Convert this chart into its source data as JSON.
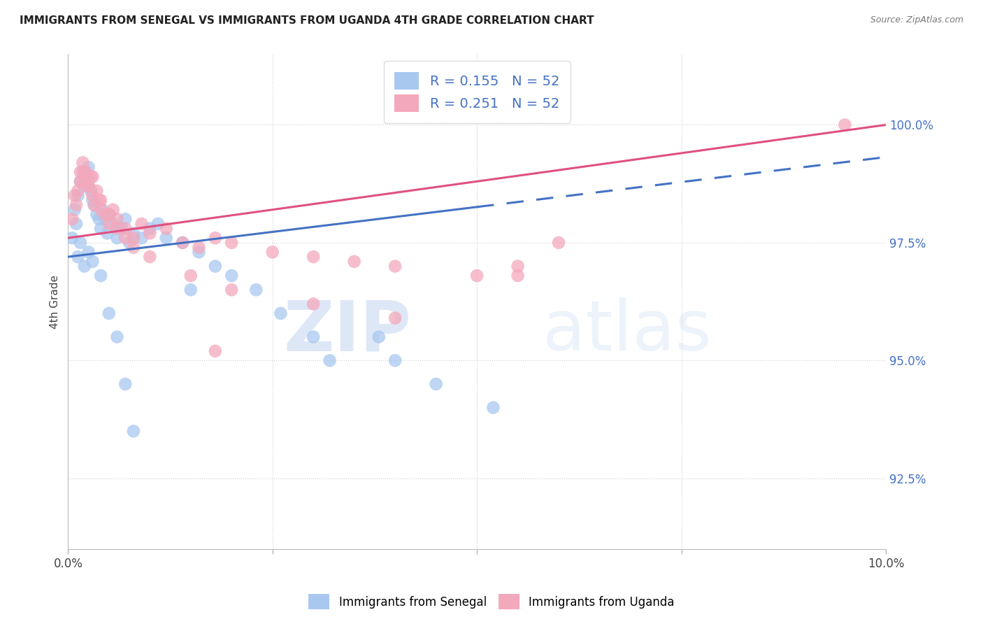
{
  "title": "IMMIGRANTS FROM SENEGAL VS IMMIGRANTS FROM UGANDA 4TH GRADE CORRELATION CHART",
  "source": "Source: ZipAtlas.com",
  "ylabel": "4th Grade",
  "xlim": [
    0.0,
    10.0
  ],
  "ylim": [
    91.0,
    101.5
  ],
  "legend_r1": "R = 0.155",
  "legend_n1": "N = 52",
  "legend_r2": "R = 0.251",
  "legend_n2": "N = 52",
  "legend_label1": "Immigrants from Senegal",
  "legend_label2": "Immigrants from Uganda",
  "color_senegal": "#a8c8f0",
  "color_uganda": "#f4a8bc",
  "color_line_senegal": "#4472c4",
  "color_line_uganda": "#e05080",
  "color_axis_right": "#4472c4",
  "watermark_zip": "ZIP",
  "watermark_atlas": "atlas",
  "grid_color": "#d0d0d0",
  "bg_color": "#ffffff",
  "senegal_x": [
    0.05,
    0.08,
    0.1,
    0.12,
    0.15,
    0.18,
    0.2,
    0.22,
    0.25,
    0.28,
    0.3,
    0.32,
    0.35,
    0.38,
    0.4,
    0.42,
    0.45,
    0.48,
    0.5,
    0.55,
    0.6,
    0.65,
    0.7,
    0.75,
    0.8,
    0.9,
    1.0,
    1.1,
    1.2,
    1.4,
    1.5,
    1.6,
    1.8,
    2.0,
    2.3,
    2.6,
    3.0,
    3.2,
    3.8,
    4.0,
    4.5,
    5.2,
    0.12,
    0.15,
    0.2,
    0.25,
    0.3,
    0.4,
    0.5,
    0.6,
    0.7,
    0.8
  ],
  "senegal_y": [
    97.6,
    98.2,
    97.9,
    98.5,
    98.8,
    99.0,
    98.7,
    98.9,
    99.1,
    98.6,
    98.4,
    98.3,
    98.1,
    98.0,
    97.8,
    98.2,
    98.0,
    97.7,
    98.1,
    97.9,
    97.6,
    97.8,
    98.0,
    97.5,
    97.7,
    97.6,
    97.8,
    97.9,
    97.6,
    97.5,
    96.5,
    97.3,
    97.0,
    96.8,
    96.5,
    96.0,
    95.5,
    95.0,
    95.5,
    95.0,
    94.5,
    94.0,
    97.2,
    97.5,
    97.0,
    97.3,
    97.1,
    96.8,
    96.0,
    95.5,
    94.5,
    93.5
  ],
  "uganda_x": [
    0.05,
    0.08,
    0.1,
    0.12,
    0.15,
    0.18,
    0.2,
    0.22,
    0.25,
    0.28,
    0.3,
    0.32,
    0.35,
    0.38,
    0.4,
    0.45,
    0.5,
    0.55,
    0.6,
    0.7,
    0.8,
    0.9,
    1.0,
    1.2,
    1.4,
    1.6,
    1.8,
    2.0,
    2.5,
    3.0,
    3.5,
    4.0,
    5.0,
    5.5,
    6.0,
    9.5,
    0.15,
    0.2,
    0.25,
    0.3,
    0.4,
    0.5,
    0.6,
    0.7,
    0.8,
    1.0,
    1.5,
    2.0,
    3.0,
    4.0,
    5.5,
    1.8
  ],
  "uganda_y": [
    98.0,
    98.5,
    98.3,
    98.6,
    99.0,
    99.2,
    98.8,
    99.0,
    98.7,
    98.9,
    98.5,
    98.3,
    98.6,
    98.4,
    98.2,
    98.1,
    97.9,
    98.2,
    98.0,
    97.8,
    97.6,
    97.9,
    97.7,
    97.8,
    97.5,
    97.4,
    97.6,
    97.5,
    97.3,
    97.2,
    97.1,
    97.0,
    96.8,
    97.0,
    97.5,
    100.0,
    98.8,
    99.0,
    98.7,
    98.9,
    98.4,
    98.1,
    97.8,
    97.6,
    97.4,
    97.2,
    96.8,
    96.5,
    96.2,
    95.9,
    96.8,
    95.2
  ],
  "line_senegal_x0": 0.0,
  "line_senegal_y0": 97.2,
  "line_senegal_x1": 5.2,
  "line_senegal_y1": 98.3,
  "line_uganda_x0": 0.0,
  "line_uganda_y0": 97.6,
  "line_uganda_x1": 10.0,
  "line_uganda_y1": 100.0,
  "dash_senegal_x0": 5.0,
  "dash_senegal_x1": 10.0
}
